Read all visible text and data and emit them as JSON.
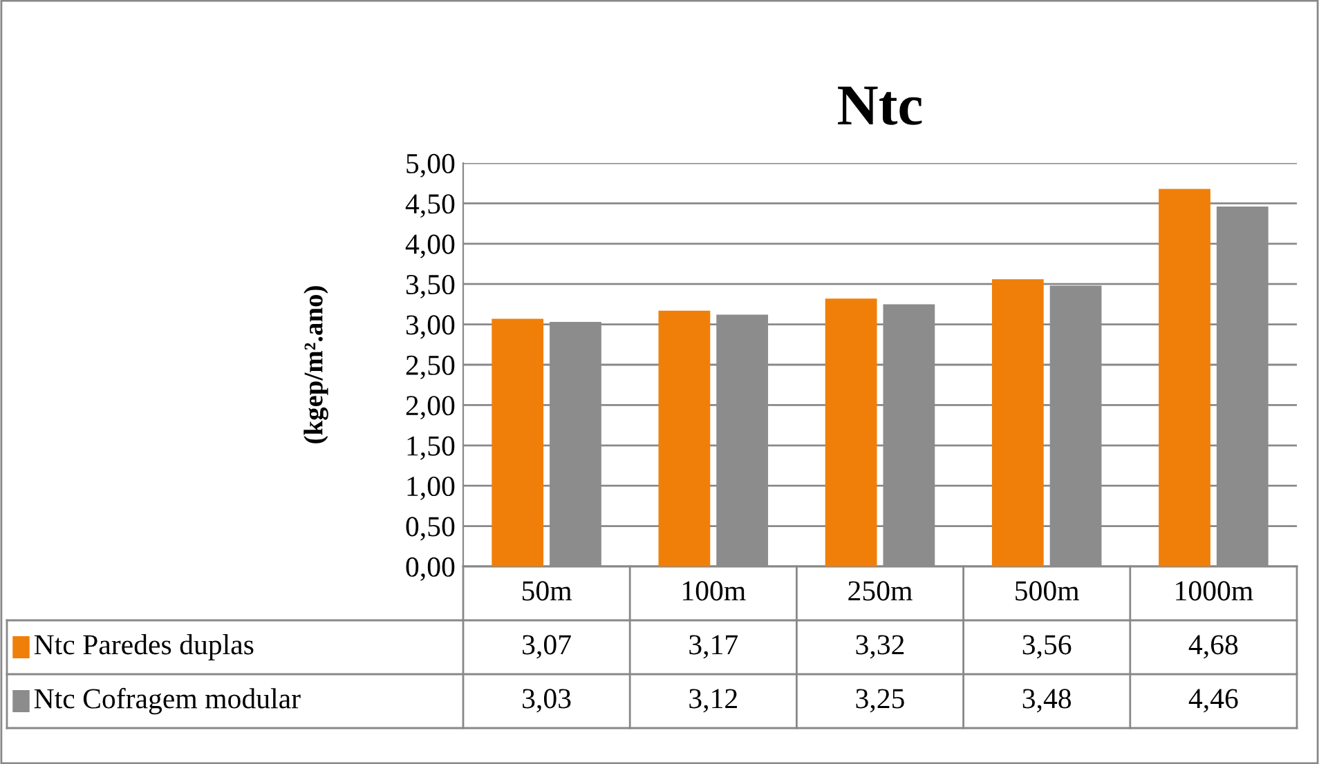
{
  "chart_data": {
    "type": "bar",
    "title": "Ntc",
    "ylabel": "(kgep/m².ano)",
    "categories": [
      "50m",
      "100m",
      "250m",
      "500m",
      "1000m"
    ],
    "series": [
      {
        "name": "Ntc Paredes duplas",
        "color": "#f07f09",
        "values": [
          3.07,
          3.17,
          3.32,
          3.56,
          4.68
        ],
        "value_labels": [
          "3,07",
          "3,17",
          "3,32",
          "3,56",
          "4,68"
        ]
      },
      {
        "name": "Ntc Cofragem modular",
        "color": "#8c8c8c",
        "values": [
          3.03,
          3.12,
          3.25,
          3.48,
          4.46
        ],
        "value_labels": [
          "3,03",
          "3,12",
          "3,25",
          "3,48",
          "4,46"
        ]
      }
    ],
    "ylim": [
      0,
      5
    ],
    "yticks": [
      {
        "value": 0,
        "label": "0,00"
      },
      {
        "value": 0.5,
        "label": "0,50"
      },
      {
        "value": 1,
        "label": "1,00"
      },
      {
        "value": 1.5,
        "label": "1,50"
      },
      {
        "value": 2,
        "label": "2,00"
      },
      {
        "value": 2.5,
        "label": "2,50"
      },
      {
        "value": 3,
        "label": "3,00"
      },
      {
        "value": 3.5,
        "label": "3,50"
      },
      {
        "value": 4,
        "label": "4,00"
      },
      {
        "value": 4.5,
        "label": "4,50"
      },
      {
        "value": 5,
        "label": "5,00"
      }
    ],
    "grid": "y",
    "legend": "bottom"
  }
}
